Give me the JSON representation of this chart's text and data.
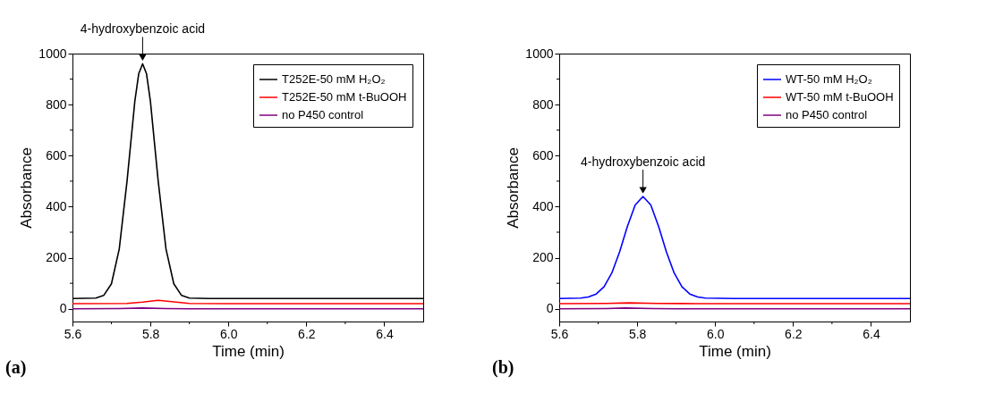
{
  "chart_data": [
    {
      "type": "line",
      "xlabel": "Time (min)",
      "ylabel": "Absorbance",
      "xlim": [
        5.6,
        6.5
      ],
      "ylim": [
        -50,
        1000
      ],
      "xticks": [
        5.6,
        {
          "value": 5.7,
          "label": null
        },
        5.8,
        {
          "value": 5.9,
          "label": null
        },
        {
          "value": 6.0,
          "label": "6.0"
        },
        {
          "value": 6.1,
          "label": null
        },
        6.2,
        {
          "value": 6.3,
          "label": null
        },
        6.4
      ],
      "yticks": [
        0,
        {
          "value": 100,
          "label": null
        },
        200,
        {
          "value": 300,
          "label": null
        },
        400,
        {
          "value": 500,
          "label": null
        },
        600,
        {
          "value": 700,
          "label": null
        },
        800,
        {
          "value": 900,
          "label": null
        },
        1000
      ],
      "grid": false,
      "legend": "top right",
      "marker": "none",
      "line_style": "solid",
      "annotations": [
        {
          "text": "4-hydroxybenzoic acid",
          "x": 5.78,
          "y": 960
        },
        "(a)"
      ],
      "series": [
        {
          "name": "T252E-50 mM H₂O₂",
          "color": "#000000",
          "x": [
            5.6,
            5.66,
            5.68,
            5.7,
            5.72,
            5.74,
            5.76,
            5.77,
            5.78,
            5.79,
            5.8,
            5.82,
            5.84,
            5.86,
            5.88,
            5.9,
            5.95,
            6.5
          ],
          "values": [
            40,
            42,
            52,
            98,
            234,
            500,
            813,
            921,
            960,
            921,
            813,
            500,
            234,
            98,
            52,
            42,
            40,
            40
          ]
        },
        {
          "name": "T252E-50 mM t-BuOOH",
          "color": "#ff0000",
          "x": [
            5.6,
            5.74,
            5.78,
            5.82,
            5.86,
            5.9,
            6.0,
            6.5
          ],
          "values": [
            20,
            21,
            26,
            33,
            27,
            21,
            20,
            20
          ]
        },
        {
          "name": "no P450 control",
          "color": "#800080",
          "x": [
            5.6,
            5.72,
            5.78,
            5.84,
            5.9,
            6.5
          ],
          "values": [
            0,
            1,
            3,
            1,
            0,
            0
          ]
        }
      ]
    },
    {
      "type": "line",
      "xlabel": "Time (min)",
      "ylabel": "Absorbance",
      "xlim": [
        5.6,
        6.5
      ],
      "ylim": [
        -50,
        1000
      ],
      "xticks": [
        5.6,
        {
          "value": 5.7,
          "label": null
        },
        5.8,
        {
          "value": 5.9,
          "label": null
        },
        {
          "value": 6.0,
          "label": "6.0"
        },
        {
          "value": 6.1,
          "label": null
        },
        6.2,
        {
          "value": 6.3,
          "label": null
        },
        6.4
      ],
      "yticks": [
        0,
        {
          "value": 100,
          "label": null
        },
        200,
        {
          "value": 300,
          "label": null
        },
        400,
        {
          "value": 500,
          "label": null
        },
        600,
        {
          "value": 700,
          "label": null
        },
        800,
        {
          "value": 900,
          "label": null
        },
        1000
      ],
      "grid": false,
      "legend": "top right",
      "marker": "none",
      "line_style": "solid",
      "annotations": [
        {
          "text": "4-hydroxybenzoic acid",
          "x": 5.815,
          "y": 440
        },
        "(b)"
      ],
      "series": [
        {
          "name": "WT-50 mM H₂O₂",
          "color": "#0000ff",
          "x": [
            5.6,
            5.655,
            5.675,
            5.695,
            5.715,
            5.735,
            5.755,
            5.775,
            5.795,
            5.815,
            5.835,
            5.855,
            5.875,
            5.895,
            5.915,
            5.935,
            5.955,
            5.975,
            6.05,
            6.5
          ],
          "values": [
            40,
            42,
            46,
            58,
            86,
            140,
            223,
            323,
            407,
            440,
            407,
            323,
            223,
            140,
            86,
            58,
            46,
            42,
            40,
            40
          ]
        },
        {
          "name": "WT-50 mM t-BuOOH",
          "color": "#ff0000",
          "x": [
            5.6,
            5.72,
            5.78,
            5.85,
            5.95,
            6.5
          ],
          "values": [
            20,
            21,
            23,
            21,
            20,
            20
          ]
        },
        {
          "name": "no P450 control",
          "color": "#800080",
          "x": [
            5.6,
            5.72,
            5.77,
            5.84,
            5.9,
            6.5
          ],
          "values": [
            0,
            1,
            3,
            1,
            0,
            0
          ]
        }
      ]
    }
  ]
}
